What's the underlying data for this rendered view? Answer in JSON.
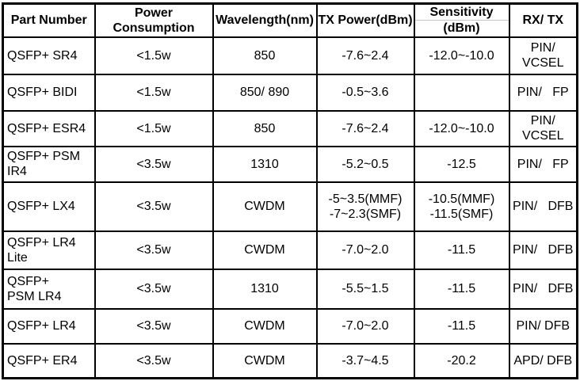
{
  "chart_data": {
    "type": "table",
    "title": "QSFP+ transceiver module specifications",
    "columns": [
      "Part Number",
      "Power Consumption",
      "Wavelength(nm)",
      "TX Power(dBm)",
      "Sensitivity (dBm)",
      "RX/ TX"
    ],
    "rows": [
      [
        "QSFP+ SR4",
        "<1.5w",
        "850",
        "-7.6~2.4",
        "-12.0~-10.0",
        "PIN/ VCSEL"
      ],
      [
        "QSFP+ BIDI",
        "<1.5w",
        "850/ 890",
        "-0.5~3.6",
        "",
        "PIN/ FP"
      ],
      [
        "QSFP+ ESR4",
        "<1.5w",
        "850",
        "-7.6~2.4",
        "-12.0~-10.0",
        "PIN/ VCSEL"
      ],
      [
        "QSFP+ PSM IR4",
        "<3.5w",
        "1310",
        "-5.2~0.5",
        "-12.5",
        "PIN/ FP"
      ],
      [
        "QSFP+ LX4",
        "<3.5w",
        "CWDM",
        "-5~3.5(MMF) -7~2.3(SMF)",
        "-10.5(MMF) -11.5(SMF)",
        "PIN/ DFB"
      ],
      [
        "QSFP+ LR4 Lite",
        "<3.5w",
        "CWDM",
        "-7.0~2.0",
        "-11.5",
        "PIN/ DFB"
      ],
      [
        "QSFP+ PSM LR4",
        "<3.5w",
        "1310",
        "-5.5~1.5",
        "-11.5",
        "PIN/ DFB"
      ],
      [
        "QSFP+ LR4",
        "<3.5w",
        "CWDM",
        "-7.0~2.0",
        "-11.5",
        "PIN/ DFB"
      ],
      [
        "QSFP+ ER4",
        "<3.5w",
        "CWDM",
        "-3.7~4.5",
        "-20.2",
        "APD/ DFB"
      ]
    ]
  },
  "table": {
    "columns": [
      {
        "id": "part-number",
        "lines": [
          "Part Number"
        ],
        "divider": false
      },
      {
        "id": "power-consumption",
        "lines": [
          "Power",
          "Consumption"
        ],
        "divider": false
      },
      {
        "id": "wavelength",
        "lines": [
          "Wavelength(nm)"
        ],
        "divider": false
      },
      {
        "id": "tx-power",
        "lines": [
          "TX Power(dBm)"
        ],
        "divider": false
      },
      {
        "id": "sensitivity",
        "lines": [
          "Sensitivity",
          "(dBm)"
        ],
        "divider": true
      },
      {
        "id": "rx-tx",
        "lines": [
          "RX/ TX"
        ],
        "divider": false
      }
    ],
    "rows": [
      {
        "cells": [
          "QSFP+ SR4",
          "<1.5w",
          "850",
          "-7.6~2.4",
          "-12.0~-10.0",
          "PIN/\nVCSEL"
        ]
      },
      {
        "cells": [
          "QSFP+ BIDI",
          "<1.5w",
          "850/ 890",
          "-0.5~3.6",
          "",
          "PIN/   FP"
        ]
      },
      {
        "cells": [
          "QSFP+ ESR4",
          "<1.5w",
          "850",
          "-7.6~2.4",
          "-12.0~-10.0",
          "PIN/\nVCSEL"
        ]
      },
      {
        "cells": [
          "QSFP+ PSM\nIR4",
          "<3.5w",
          "1310",
          "-5.2~0.5",
          "-12.5",
          "PIN/   FP"
        ]
      },
      {
        "cells": [
          "QSFP+ LX4",
          "<3.5w",
          "CWDM",
          "-5~3.5(MMF)\n-7~2.3(SMF)",
          "-10.5(MMF)\n-11.5(SMF)",
          "PIN/   DFB"
        ]
      },
      {
        "cells": [
          "QSFP+ LR4\nLite",
          "<3.5w",
          "CWDM",
          "-7.0~2.0",
          "-11.5",
          "PIN/   DFB"
        ]
      },
      {
        "cells": [
          "QSFP+\nPSM LR4",
          "<3.5w",
          "1310",
          "-5.5~1.5",
          "-11.5",
          "PIN/   DFB"
        ]
      },
      {
        "cells": [
          "QSFP+ LR4",
          "<3.5w",
          "CWDM",
          "-7.0~2.0",
          "-11.5",
          "PIN/ DFB"
        ]
      },
      {
        "cells": [
          "QSFP+ ER4",
          "<3.5w",
          "CWDM",
          "-3.7~4.5",
          "-20.2",
          "APD/ DFB"
        ]
      }
    ],
    "colors": {
      "border": "#000000",
      "text": "#000000",
      "background": "#ffffff",
      "header_divider": "#c6c6c6"
    }
  }
}
